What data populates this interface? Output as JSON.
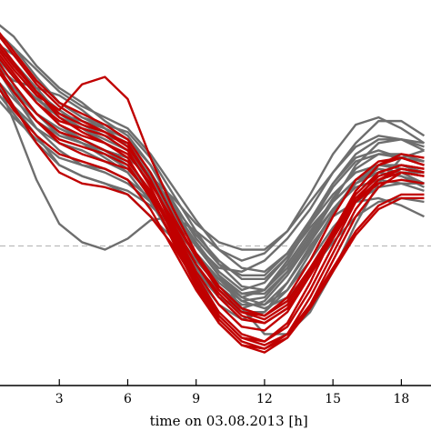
{
  "chart_data": {
    "type": "line",
    "xlabel": "time on 03.08.2013 [h]",
    "xlim": [
      0,
      19.3
    ],
    "ylim": [
      0,
      1
    ],
    "x_ticks": [
      3,
      6,
      9,
      12,
      15,
      18
    ],
    "x_tick_labels": [
      "3",
      "6",
      "9",
      "12",
      "15",
      "18"
    ],
    "reference_line": {
      "y": 0.38,
      "style": "dashed"
    },
    "grid": false,
    "legend": "none",
    "colors": {
      "gray": "#6e6e6e",
      "red": "#c00000",
      "reference": "#bbbbbb"
    },
    "x": [
      0,
      1,
      2,
      3,
      4,
      5,
      6,
      7,
      8,
      9,
      10,
      11,
      12,
      13,
      14,
      15,
      16,
      17,
      18,
      19
    ],
    "series": [
      {
        "color": "gray",
        "values": [
          0.86,
          0.76,
          0.7,
          0.66,
          0.64,
          0.61,
          0.58,
          0.5,
          0.4,
          0.3,
          0.22,
          0.18,
          0.2,
          0.28,
          0.38,
          0.46,
          0.5,
          0.51,
          0.49,
          0.46
        ]
      },
      {
        "color": "gray",
        "values": [
          0.89,
          0.8,
          0.74,
          0.7,
          0.67,
          0.64,
          0.6,
          0.52,
          0.44,
          0.36,
          0.28,
          0.23,
          0.24,
          0.31,
          0.4,
          0.48,
          0.54,
          0.56,
          0.55,
          0.53
        ]
      },
      {
        "color": "gray",
        "values": [
          0.92,
          0.84,
          0.78,
          0.73,
          0.7,
          0.67,
          0.64,
          0.56,
          0.47,
          0.38,
          0.3,
          0.25,
          0.26,
          0.33,
          0.42,
          0.5,
          0.56,
          0.58,
          0.57,
          0.55
        ]
      },
      {
        "color": "gray",
        "values": [
          0.95,
          0.87,
          0.8,
          0.75,
          0.71,
          0.68,
          0.66,
          0.58,
          0.48,
          0.39,
          0.31,
          0.26,
          0.28,
          0.35,
          0.44,
          0.52,
          0.58,
          0.6,
          0.59,
          0.58
        ]
      },
      {
        "color": "gray",
        "values": [
          0.98,
          0.92,
          0.84,
          0.77,
          0.73,
          0.7,
          0.67,
          0.6,
          0.49,
          0.38,
          0.3,
          0.24,
          0.26,
          0.34,
          0.44,
          0.54,
          0.61,
          0.63,
          0.62,
          0.61
        ]
      },
      {
        "color": "gray",
        "values": [
          1.0,
          0.95,
          0.87,
          0.81,
          0.77,
          0.72,
          0.68,
          0.6,
          0.5,
          0.4,
          0.33,
          0.3,
          0.3,
          0.36,
          0.45,
          0.55,
          0.62,
          0.64,
          0.62,
          0.6
        ]
      },
      {
        "color": "gray",
        "values": [
          0.88,
          0.83,
          0.81,
          0.79,
          0.75,
          0.7,
          0.65,
          0.56,
          0.46,
          0.38,
          0.32,
          0.31,
          0.34,
          0.4,
          0.48,
          0.58,
          0.66,
          0.72,
          0.72,
          0.68
        ]
      },
      {
        "color": "gray",
        "values": [
          0.9,
          0.82,
          0.74,
          0.68,
          0.66,
          0.64,
          0.62,
          0.57,
          0.49,
          0.41,
          0.34,
          0.29,
          0.29,
          0.35,
          0.43,
          0.5,
          0.56,
          0.59,
          0.58,
          0.57
        ]
      },
      {
        "color": "gray",
        "values": [
          0.84,
          0.76,
          0.68,
          0.6,
          0.57,
          0.55,
          0.52,
          0.46,
          0.4,
          0.32,
          0.26,
          0.21,
          0.19,
          0.23,
          0.31,
          0.41,
          0.5,
          0.56,
          0.58,
          0.58
        ]
      },
      {
        "color": "gray",
        "values": [
          0.8,
          0.73,
          0.67,
          0.62,
          0.6,
          0.58,
          0.55,
          0.5,
          0.45,
          0.38,
          0.3,
          0.21,
          0.14,
          0.14,
          0.2,
          0.31,
          0.44,
          0.55,
          0.62,
          0.64
        ]
      },
      {
        "color": "gray",
        "values": [
          0.91,
          0.84,
          0.78,
          0.74,
          0.72,
          0.7,
          0.65,
          0.57,
          0.47,
          0.38,
          0.3,
          0.25,
          0.25,
          0.31,
          0.4,
          0.5,
          0.6,
          0.66,
          0.67,
          0.64
        ]
      },
      {
        "color": "gray",
        "values": [
          0.87,
          0.72,
          0.56,
          0.44,
          0.39,
          0.37,
          0.4,
          0.45,
          0.46,
          0.42,
          0.37,
          0.34,
          0.36,
          0.42,
          0.52,
          0.63,
          0.71,
          0.73,
          0.7,
          0.66
        ]
      },
      {
        "color": "gray",
        "values": [
          0.89,
          0.79,
          0.7,
          0.64,
          0.6,
          0.59,
          0.56,
          0.51,
          0.44,
          0.36,
          0.29,
          0.24,
          0.22,
          0.26,
          0.34,
          0.43,
          0.5,
          0.54,
          0.55,
          0.55
        ]
      },
      {
        "color": "gray",
        "values": [
          0.93,
          0.88,
          0.81,
          0.74,
          0.7,
          0.66,
          0.62,
          0.57,
          0.51,
          0.44,
          0.39,
          0.37,
          0.37,
          0.42,
          0.5,
          0.58,
          0.65,
          0.68,
          0.67,
          0.65
        ]
      },
      {
        "color": "gray",
        "values": [
          0.96,
          0.88,
          0.79,
          0.71,
          0.67,
          0.64,
          0.61,
          0.53,
          0.42,
          0.32,
          0.24,
          0.2,
          0.2,
          0.26,
          0.36,
          0.47,
          0.56,
          0.6,
          0.6,
          0.58
        ]
      },
      {
        "color": "gray",
        "values": [
          0.85,
          0.78,
          0.72,
          0.68,
          0.66,
          0.63,
          0.59,
          0.52,
          0.43,
          0.34,
          0.27,
          0.22,
          0.22,
          0.28,
          0.37,
          0.47,
          0.55,
          0.59,
          0.58,
          0.55
        ]
      },
      {
        "color": "gray",
        "values": [
          0.82,
          0.74,
          0.66,
          0.6,
          0.57,
          0.55,
          0.53,
          0.49,
          0.43,
          0.36,
          0.29,
          0.23,
          0.21,
          0.24,
          0.31,
          0.39,
          0.46,
          0.5,
          0.51,
          0.5
        ]
      },
      {
        "color": "gray",
        "values": [
          0.94,
          0.9,
          0.83,
          0.77,
          0.73,
          0.71,
          0.69,
          0.62,
          0.52,
          0.42,
          0.33,
          0.27,
          0.26,
          0.32,
          0.41,
          0.51,
          0.59,
          0.63,
          0.63,
          0.61
        ]
      },
      {
        "color": "gray",
        "values": [
          0.97,
          0.92,
          0.86,
          0.8,
          0.76,
          0.73,
          0.7,
          0.63,
          0.54,
          0.45,
          0.37,
          0.32,
          0.31,
          0.36,
          0.45,
          0.55,
          0.63,
          0.67,
          0.67,
          0.66
        ]
      },
      {
        "color": "gray",
        "values": [
          0.88,
          0.81,
          0.74,
          0.69,
          0.66,
          0.62,
          0.58,
          0.5,
          0.4,
          0.31,
          0.24,
          0.21,
          0.23,
          0.3,
          0.39,
          0.48,
          0.55,
          0.58,
          0.57,
          0.54
        ]
      },
      {
        "color": "red",
        "values": [
          0.94,
          0.86,
          0.79,
          0.75,
          0.82,
          0.84,
          0.78,
          0.62,
          0.48,
          0.36,
          0.27,
          0.21,
          0.19,
          0.23,
          0.32,
          0.42,
          0.5,
          0.55,
          0.56,
          0.55
        ]
      },
      {
        "color": "red",
        "values": [
          0.92,
          0.84,
          0.77,
          0.72,
          0.7,
          0.68,
          0.64,
          0.54,
          0.42,
          0.3,
          0.2,
          0.14,
          0.12,
          0.16,
          0.26,
          0.38,
          0.5,
          0.58,
          0.6,
          0.59
        ]
      },
      {
        "color": "red",
        "values": [
          0.9,
          0.8,
          0.72,
          0.67,
          0.65,
          0.63,
          0.6,
          0.51,
          0.4,
          0.28,
          0.18,
          0.12,
          0.1,
          0.14,
          0.24,
          0.36,
          0.48,
          0.56,
          0.58,
          0.57
        ]
      },
      {
        "color": "red",
        "values": [
          0.96,
          0.88,
          0.8,
          0.73,
          0.69,
          0.66,
          0.62,
          0.52,
          0.39,
          0.27,
          0.17,
          0.11,
          0.09,
          0.13,
          0.22,
          0.34,
          0.46,
          0.54,
          0.58,
          0.57
        ]
      },
      {
        "color": "red",
        "values": [
          0.98,
          0.9,
          0.82,
          0.76,
          0.72,
          0.69,
          0.66,
          0.56,
          0.43,
          0.31,
          0.22,
          0.16,
          0.15,
          0.2,
          0.3,
          0.42,
          0.53,
          0.6,
          0.62,
          0.6
        ]
      },
      {
        "color": "red",
        "values": [
          0.86,
          0.76,
          0.66,
          0.58,
          0.55,
          0.54,
          0.52,
          0.46,
          0.38,
          0.28,
          0.19,
          0.13,
          0.11,
          0.14,
          0.22,
          0.32,
          0.42,
          0.49,
          0.52,
          0.52
        ]
      },
      {
        "color": "red",
        "values": [
          0.88,
          0.8,
          0.72,
          0.66,
          0.63,
          0.61,
          0.59,
          0.52,
          0.43,
          0.33,
          0.25,
          0.19,
          0.17,
          0.21,
          0.3,
          0.41,
          0.51,
          0.57,
          0.59,
          0.58
        ]
      },
      {
        "color": "red",
        "values": [
          0.93,
          0.85,
          0.77,
          0.71,
          0.68,
          0.66,
          0.63,
          0.55,
          0.45,
          0.35,
          0.26,
          0.2,
          0.18,
          0.22,
          0.31,
          0.42,
          0.52,
          0.58,
          0.6,
          0.59
        ]
      },
      {
        "color": "red",
        "values": [
          0.91,
          0.82,
          0.74,
          0.69,
          0.67,
          0.64,
          0.61,
          0.53,
          0.41,
          0.29,
          0.19,
          0.13,
          0.12,
          0.17,
          0.28,
          0.41,
          0.53,
          0.6,
          0.63,
          0.62
        ]
      },
      {
        "color": "red",
        "values": [
          0.95,
          0.87,
          0.8,
          0.74,
          0.71,
          0.69,
          0.65,
          0.56,
          0.44,
          0.33,
          0.24,
          0.18,
          0.17,
          0.21,
          0.3,
          0.4,
          0.5,
          0.56,
          0.59,
          0.58
        ]
      },
      {
        "color": "red",
        "values": [
          0.84,
          0.75,
          0.68,
          0.63,
          0.61,
          0.59,
          0.56,
          0.48,
          0.37,
          0.26,
          0.17,
          0.11,
          0.1,
          0.13,
          0.21,
          0.31,
          0.41,
          0.48,
          0.51,
          0.51
        ]
      },
      {
        "color": "red",
        "values": [
          0.99,
          0.91,
          0.83,
          0.77,
          0.74,
          0.71,
          0.67,
          0.58,
          0.46,
          0.35,
          0.26,
          0.2,
          0.19,
          0.24,
          0.34,
          0.46,
          0.56,
          0.61,
          0.62,
          0.6
        ]
      }
    ]
  }
}
